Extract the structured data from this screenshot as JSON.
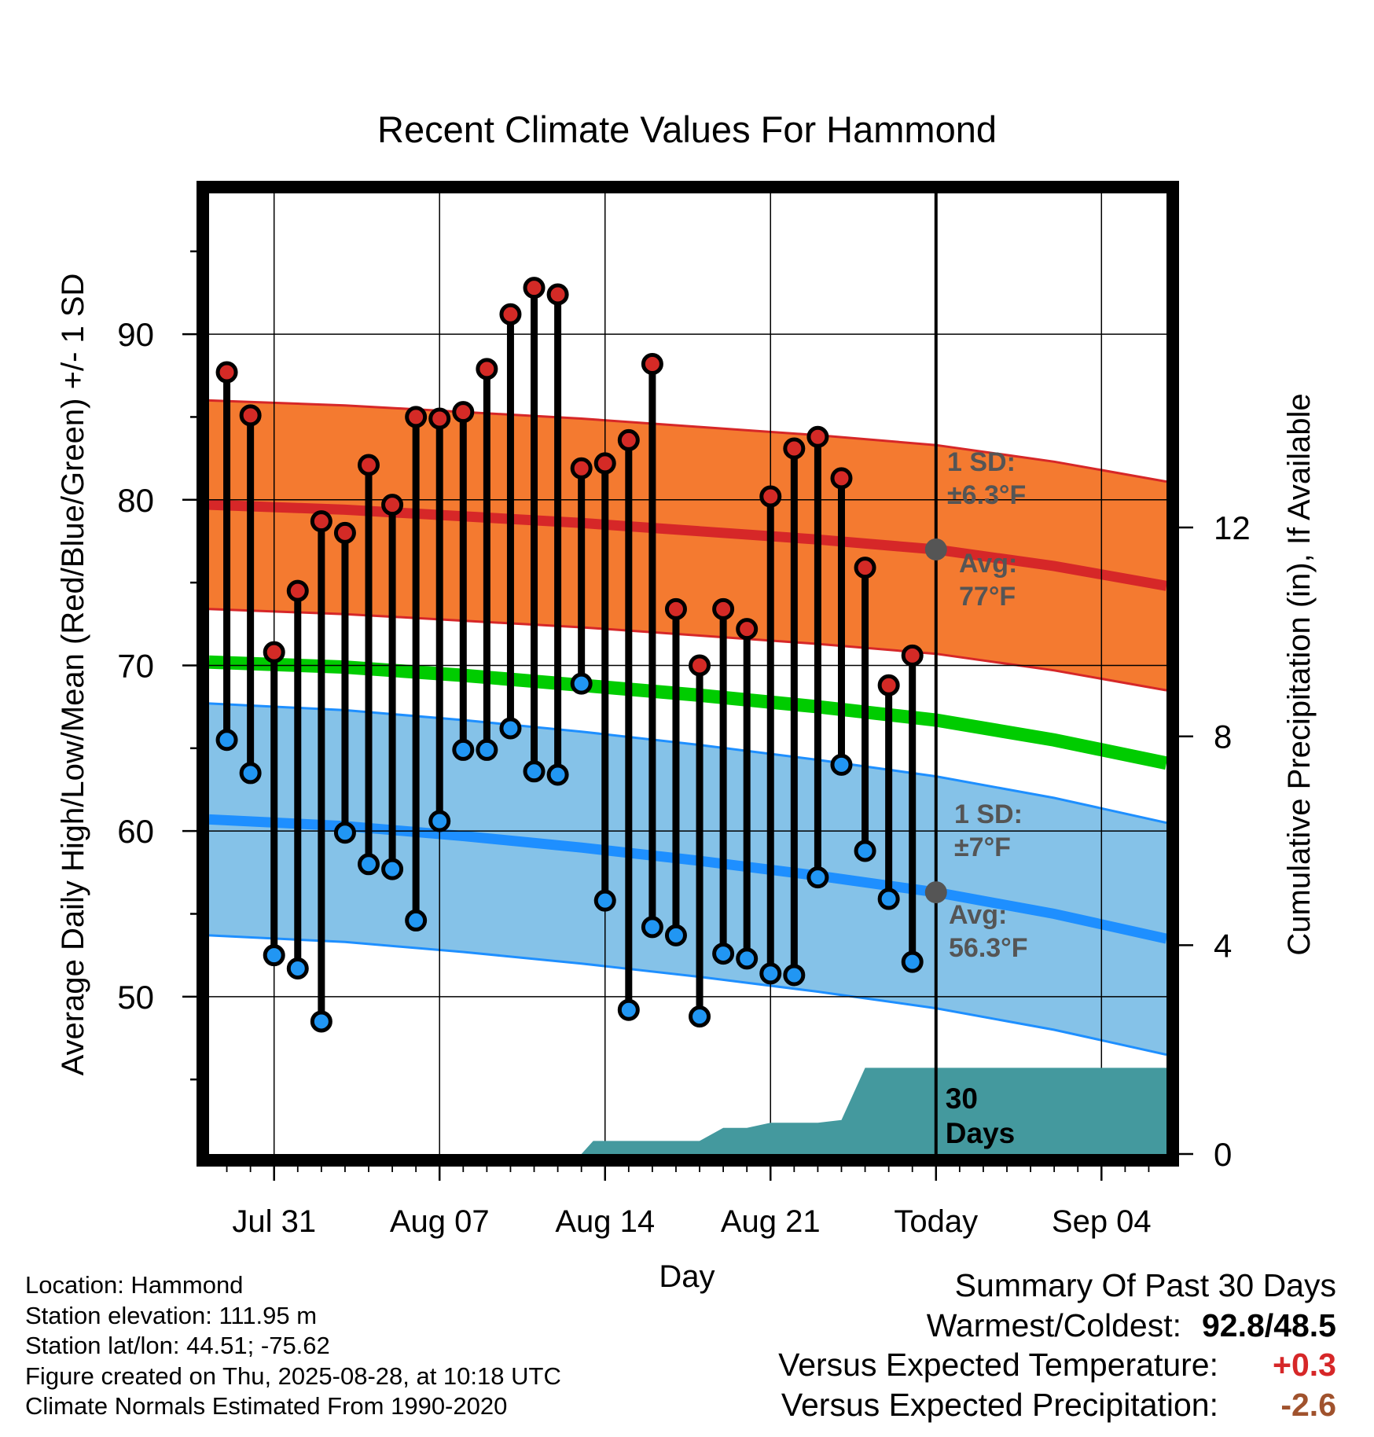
{
  "footer": {
    "location": "Location: Hammond",
    "elevation": "Station elevation: 111.95 m",
    "latlon": "Station lat/lon: 44.51; -75.62",
    "created": "Figure created on Thu, 2025-08-28, at 10:18 UTC",
    "normals": "Climate Normals Estimated From 1990-2020"
  },
  "summary": {
    "heading": "Summary Of Past 30 Days",
    "warmest_coldest_label": "Warmest/Coldest:",
    "warmest_coldest_value": "92.8/48.5",
    "temp_label": "Versus Expected Temperature:",
    "temp_value": "+0.3",
    "precip_label": "Versus Expected Precipitation:",
    "precip_value": "-2.6",
    "colors": {
      "temp_value": "#d62728",
      "precip_value": "#a0522d"
    }
  },
  "chart_data": {
    "type": "line",
    "title": "Recent Climate Values For Hammond",
    "xlabel": "Day",
    "ylabel": "Average Daily High/Low/Mean (Red/Blue/Green) +/- 1 SD",
    "y2label": "Cumulative Precipitation (in), If Available",
    "x_ticks": [
      {
        "day": 2,
        "label": "Jul 31"
      },
      {
        "day": 9,
        "label": "Aug 07"
      },
      {
        "day": 16,
        "label": "Aug 14"
      },
      {
        "day": 23,
        "label": "Aug 21"
      },
      {
        "day": 30,
        "label": "Today"
      },
      {
        "day": 37,
        "label": "Sep 04"
      }
    ],
    "x_range": [
      -0.75,
      39.75
    ],
    "ylim": [
      40.5,
      98.5
    ],
    "y_ticks": [
      50,
      60,
      70,
      80,
      90
    ],
    "y_minor_ticks": [
      45,
      55,
      65,
      75,
      85,
      95
    ],
    "y2lim": [
      0,
      18.4
    ],
    "y2_ticks": [
      0,
      4,
      8,
      12
    ],
    "grid": true,
    "today_day": 30,
    "today_label": [
      "30",
      "Days"
    ],
    "daily": {
      "day": [
        0,
        1,
        2,
        3,
        4,
        5,
        6,
        7,
        8,
        9,
        10,
        11,
        12,
        13,
        14,
        15,
        16,
        17,
        18,
        19,
        20,
        21,
        22,
        23,
        24,
        25,
        26,
        27,
        28,
        29
      ],
      "high": [
        87.7,
        85.1,
        70.8,
        74.5,
        78.7,
        78.0,
        82.1,
        79.7,
        85.0,
        84.9,
        85.3,
        87.9,
        91.2,
        92.8,
        92.4,
        81.9,
        82.2,
        83.6,
        88.2,
        73.4,
        70.0,
        73.4,
        72.2,
        80.2,
        83.1,
        83.8,
        81.3,
        75.9,
        68.8,
        70.6
      ],
      "low": [
        65.5,
        63.5,
        52.5,
        51.7,
        48.5,
        59.9,
        58.0,
        57.7,
        54.6,
        60.6,
        64.9,
        64.9,
        66.2,
        63.6,
        63.4,
        68.9,
        55.8,
        49.2,
        54.2,
        53.7,
        48.8,
        52.6,
        52.3,
        51.4,
        51.3,
        57.2,
        64.0,
        58.8,
        55.9,
        52.1
      ]
    },
    "normals": {
      "day": [
        -0.75,
        5,
        10,
        15,
        20,
        25,
        30,
        35,
        39.75
      ],
      "high_mean": [
        79.7,
        79.4,
        79.0,
        78.6,
        78.1,
        77.6,
        77.0,
        76.0,
        74.8
      ],
      "high_sd": 6.3,
      "low_mean": [
        60.7,
        60.3,
        59.7,
        59.0,
        58.2,
        57.3,
        56.3,
        55.0,
        53.5
      ],
      "low_sd": 7.0,
      "mean": [
        70.2,
        69.9,
        69.4,
        68.8,
        68.2,
        67.5,
        66.7,
        65.5,
        64.1
      ]
    },
    "precip": {
      "day": [
        -0.75,
        15,
        15.5,
        20,
        21,
        22,
        23,
        24,
        25,
        26,
        27,
        39.75
      ],
      "cum": [
        0,
        0,
        0.25,
        0.25,
        0.5,
        0.5,
        0.6,
        0.6,
        0.6,
        0.65,
        1.65,
        1.65
      ]
    },
    "annotations": {
      "high_sd": [
        "1 SD:",
        "±6.3°F"
      ],
      "high_avg": [
        "Avg:",
        "77°F"
      ],
      "low_sd": [
        "1 SD:",
        "±7°F"
      ],
      "low_avg": [
        "Avg:",
        "56.3°F"
      ],
      "today_high_avg": 77.0,
      "today_low_avg": 56.3
    },
    "colors": {
      "high_band": "#f47a30",
      "high_line": "#d62728",
      "low_band": "#85c2e8",
      "low_line": "#1e8fff",
      "mean_line": "#00cc00",
      "precip": "#44999e",
      "high_dot": "#d42a26",
      "low_dot": "#2196f3",
      "annotation": "#555555",
      "today_marker": "#555555"
    }
  }
}
